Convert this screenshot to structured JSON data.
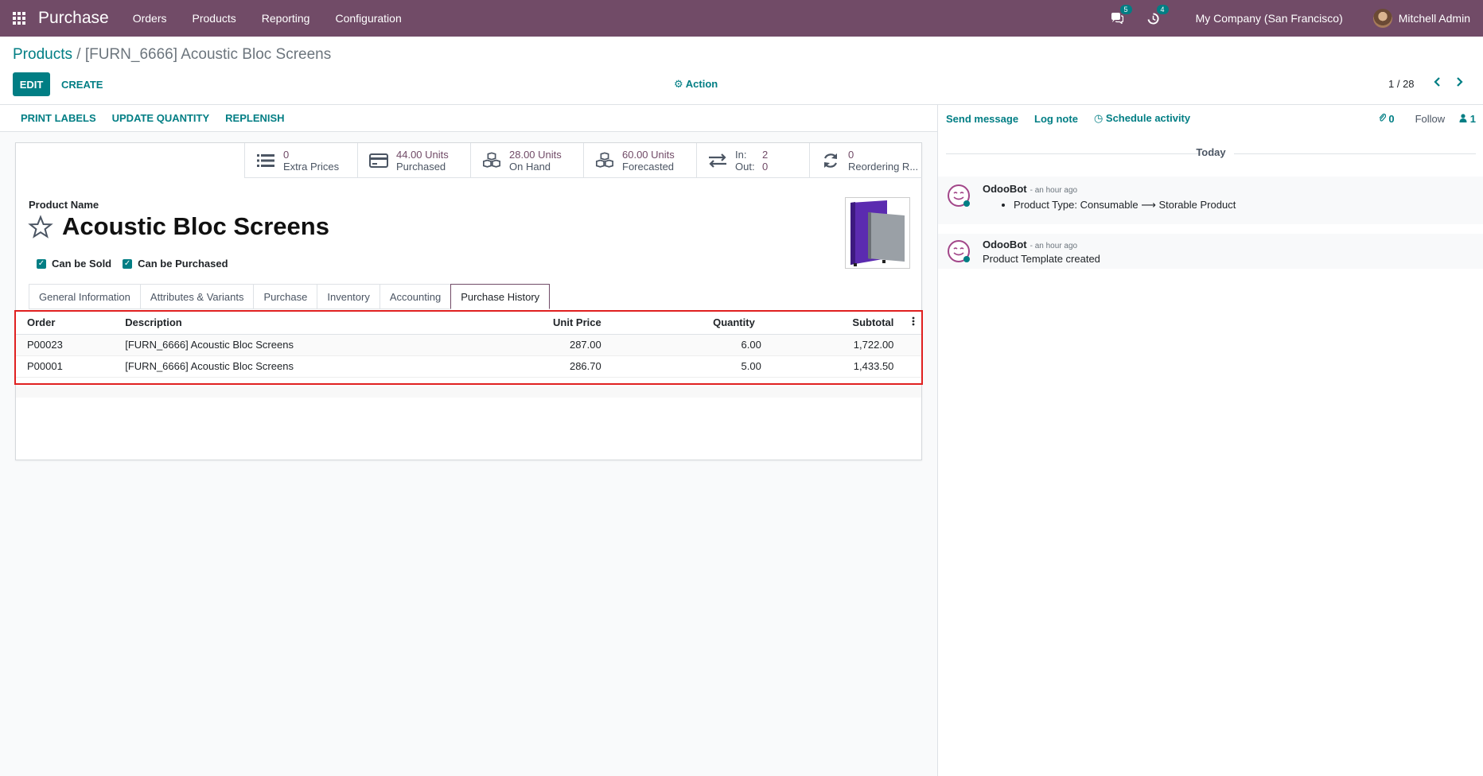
{
  "navbar": {
    "app_name": "Purchase",
    "menu": [
      "Orders",
      "Products",
      "Reporting",
      "Configuration"
    ],
    "messages_count": "5",
    "activities_count": "4",
    "company": "My Company (San Francisco)",
    "user": "Mitchell Admin"
  },
  "control": {
    "breadcrumb_parent": "Products",
    "breadcrumb_sep": " / ",
    "breadcrumb_current": "[FURN_6666] Acoustic Bloc Screens",
    "edit_label": "EDIT",
    "create_label": "CREATE",
    "action_label": "Action",
    "pager": "1 / 28"
  },
  "statusbar": {
    "buttons": [
      "PRINT LABELS",
      "UPDATE QUANTITY",
      "REPLENISH"
    ]
  },
  "smart_buttons": [
    {
      "icon": "list-icon",
      "value": "0",
      "label": "Extra Prices"
    },
    {
      "icon": "credit-card-icon",
      "value": "44.00 Units",
      "label": "Purchased"
    },
    {
      "icon": "cubes-icon",
      "value": "28.00 Units",
      "label": "On Hand"
    },
    {
      "icon": "cubes-icon",
      "value": "60.00 Units",
      "label": "Forecasted"
    },
    {
      "icon": "exchange-icon",
      "in_label": "In:",
      "in_value": "2",
      "out_label": "Out:",
      "out_value": "0"
    },
    {
      "icon": "refresh-icon",
      "value": "0",
      "label": "Reordering R..."
    }
  ],
  "form": {
    "product_name_label": "Product Name",
    "product_name": "Acoustic Bloc Screens",
    "can_be_sold": "Can be Sold",
    "can_be_purchased": "Can be Purchased"
  },
  "tabs": [
    "General Information",
    "Attributes & Variants",
    "Purchase",
    "Inventory",
    "Accounting",
    "Purchase History"
  ],
  "history": {
    "columns": [
      "Order",
      "Description",
      "Unit Price",
      "Quantity",
      "Subtotal"
    ],
    "rows": [
      {
        "order": "P00023",
        "description": "[FURN_6666] Acoustic Bloc Screens",
        "unit_price": "287.00",
        "quantity": "6.00",
        "subtotal": "1,722.00"
      },
      {
        "order": "P00001",
        "description": "[FURN_6666] Acoustic Bloc Screens",
        "unit_price": "286.70",
        "quantity": "5.00",
        "subtotal": "1,433.50"
      }
    ]
  },
  "chatter": {
    "send_message": "Send message",
    "log_note": "Log note",
    "schedule_activity": "Schedule activity",
    "attachments": "0",
    "follow": "Follow",
    "followers": "1",
    "today": "Today",
    "messages": [
      {
        "author": "OdooBot",
        "time": "- an hour ago",
        "bullet": "Product Type: Consumable",
        "arrow": "⟶",
        "bullet_to": "Storable Product"
      },
      {
        "author": "OdooBot",
        "time": "- an hour ago",
        "text": "Product Template created"
      }
    ]
  },
  "colors": {
    "brand": "#714b67",
    "accent": "#017e84",
    "highlight": "#e02020"
  }
}
